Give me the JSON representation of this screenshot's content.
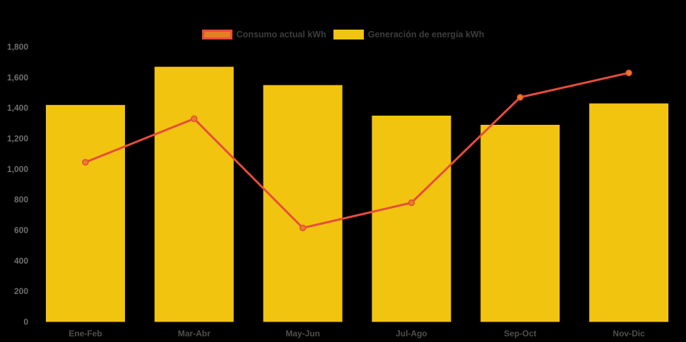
{
  "background_color": "#000000",
  "legend": {
    "position": "top-center",
    "items": [
      {
        "label": "Consumo actual kWh",
        "swatch_fill": "#e67e22",
        "swatch_border": "#e74c3c"
      },
      {
        "label": "Generación de energía kWh",
        "swatch_fill": "#f1c40f",
        "swatch_border": "#f1c40f"
      }
    ]
  },
  "chart_data": {
    "type": "bar",
    "subtype": "bar-with-line-overlay",
    "title": "",
    "xlabel": "",
    "ylabel": "",
    "categories": [
      "Ene-Feb",
      "Mar-Abr",
      "May-Jun",
      "Jul-Ago",
      "Sep-Oct",
      "Nov-Dic"
    ],
    "series": [
      {
        "name": "Generación de energía kWh",
        "type": "bar",
        "color": "#f1c40f",
        "values": [
          1420,
          1670,
          1550,
          1350,
          1290,
          1430
        ]
      },
      {
        "name": "Consumo actual kWh",
        "type": "line",
        "line_color": "#e74c3c",
        "point_color": "#e67e22",
        "values": [
          1045,
          1330,
          615,
          780,
          1470,
          1630
        ]
      }
    ],
    "ylim": [
      0,
      1800
    ],
    "ytick_step": 200,
    "y_tick_labels": [
      "0",
      "200",
      "400",
      "600",
      "800",
      "1,000",
      "1,200",
      "1,400",
      "1,600",
      "1,800"
    ],
    "grid": false,
    "legend_position": "top",
    "axis_colors": {
      "y_labels": "#6f6f6f",
      "x_labels": "#4f4f4f"
    }
  }
}
